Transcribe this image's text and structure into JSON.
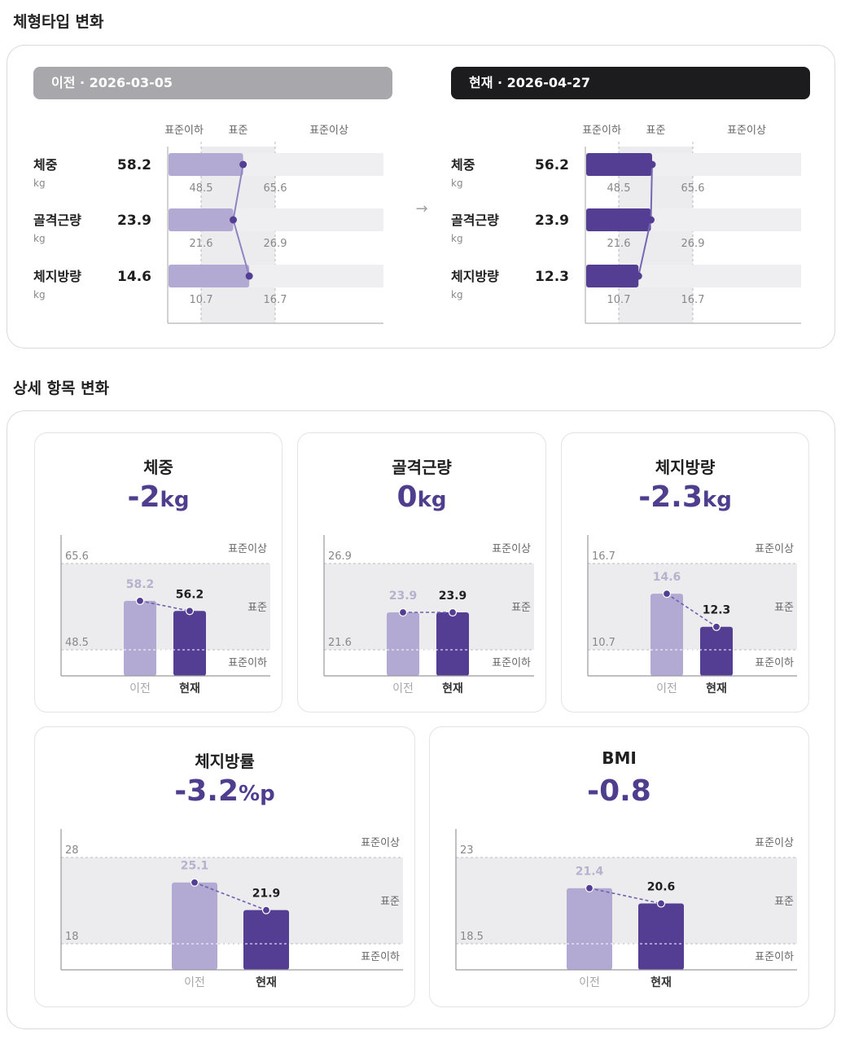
{
  "section1": {
    "title": "체형타입 변화"
  },
  "section2": {
    "title": "상세 항목 변화"
  },
  "arrow": "→",
  "colors": {
    "prev_bar": "#b2aad2",
    "curr_bar": "#533e94",
    "band": "#ececee",
    "prev_header": "#a8a8ac",
    "curr_header": "#1c1c1e",
    "accent": "#4f3d8e"
  },
  "type_panels": [
    {
      "header": "이전 · 2026-03-05",
      "style": "prev",
      "zone_labels": [
        "표준이하",
        "표준",
        "표준이상"
      ],
      "rows": [
        {
          "label": "체중",
          "unit": "kg",
          "value": "58.2",
          "low": "48.5",
          "high": "65.6"
        },
        {
          "label": "골격근량",
          "unit": "kg",
          "value": "23.9",
          "low": "21.6",
          "high": "26.9"
        },
        {
          "label": "체지방량",
          "unit": "kg",
          "value": "14.6",
          "low": "10.7",
          "high": "16.7"
        }
      ]
    },
    {
      "header": "현재 · 2026-04-27",
      "style": "curr",
      "zone_labels": [
        "표준이하",
        "표준",
        "표준이상"
      ],
      "rows": [
        {
          "label": "체중",
          "unit": "kg",
          "value": "56.2",
          "low": "48.5",
          "high": "65.6"
        },
        {
          "label": "골격근량",
          "unit": "kg",
          "value": "23.9",
          "low": "21.6",
          "high": "26.9"
        },
        {
          "label": "체지방량",
          "unit": "kg",
          "value": "12.3",
          "low": "10.7",
          "high": "16.7"
        }
      ]
    }
  ],
  "chart_data": [
    {
      "type": "bar",
      "title": "체중",
      "delta": "-2",
      "delta_unit": "kg",
      "categories": [
        "이전",
        "현재"
      ],
      "values": [
        58.2,
        56.2
      ],
      "value_labels": [
        "58.2",
        "56.2"
      ],
      "std_low": 48.5,
      "std_high": 65.6,
      "std_low_label": "48.5",
      "std_high_label": "65.6",
      "zone_labels": {
        "above": "표준이상",
        "standard": "표준",
        "below": "표준이하"
      }
    },
    {
      "type": "bar",
      "title": "골격근량",
      "delta": "0",
      "delta_unit": "kg",
      "categories": [
        "이전",
        "현재"
      ],
      "values": [
        23.9,
        23.9
      ],
      "value_labels": [
        "23.9",
        "23.9"
      ],
      "std_low": 21.6,
      "std_high": 26.9,
      "std_low_label": "21.6",
      "std_high_label": "26.9",
      "zone_labels": {
        "above": "표준이상",
        "standard": "표준",
        "below": "표준이하"
      }
    },
    {
      "type": "bar",
      "title": "체지방량",
      "delta": "-2.3",
      "delta_unit": "kg",
      "categories": [
        "이전",
        "현재"
      ],
      "values": [
        14.6,
        12.3
      ],
      "value_labels": [
        "14.6",
        "12.3"
      ],
      "std_low": 10.7,
      "std_high": 16.7,
      "std_low_label": "10.7",
      "std_high_label": "16.7",
      "zone_labels": {
        "above": "표준이상",
        "standard": "표준",
        "below": "표준이하"
      }
    },
    {
      "type": "bar",
      "title": "체지방률",
      "delta": "-3.2",
      "delta_unit": "%p",
      "categories": [
        "이전",
        "현재"
      ],
      "values": [
        25.1,
        21.9
      ],
      "value_labels": [
        "25.1",
        "21.9"
      ],
      "std_low": 18,
      "std_high": 28,
      "std_low_label": "18",
      "std_high_label": "28",
      "zone_labels": {
        "above": "표준이상",
        "standard": "표준",
        "below": "표준이하"
      }
    },
    {
      "type": "bar",
      "title": "BMI",
      "delta": "-0.8",
      "delta_unit": "",
      "categories": [
        "이전",
        "현재"
      ],
      "values": [
        21.4,
        20.6
      ],
      "value_labels": [
        "21.4",
        "20.6"
      ],
      "std_low": 18.5,
      "std_high": 23,
      "std_low_label": "18.5",
      "std_high_label": "23",
      "zone_labels": {
        "above": "표준이상",
        "standard": "표준",
        "below": "표준이하"
      }
    }
  ]
}
